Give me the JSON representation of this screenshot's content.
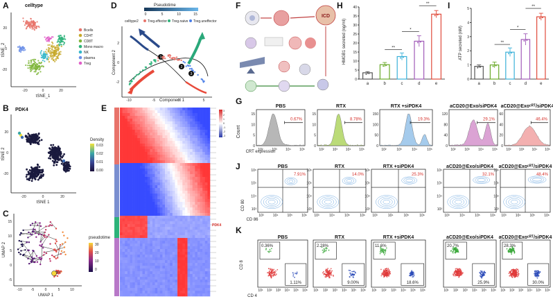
{
  "panel_labels": {
    "A": "A",
    "B": "B",
    "C": "C",
    "D": "D",
    "E": "E",
    "F": "F",
    "G": "G",
    "H": "H",
    "I": "I",
    "J": "J",
    "K": "K"
  },
  "panelA": {
    "title": "celltype",
    "xlabel": "tSNE_1",
    "ylabel": "tSNE_2",
    "xticks": [
      "-20",
      "0",
      "20"
    ],
    "yticks": [
      "20",
      "0",
      "-20"
    ],
    "legend": [
      {
        "label": "Bcells",
        "color": "#e8736a"
      },
      {
        "label": "CD4T",
        "color": "#c7a92a"
      },
      {
        "label": "CD8T",
        "color": "#7fb63b"
      },
      {
        "label": "Mono macro",
        "color": "#2db37a"
      },
      {
        "label": "NK",
        "color": "#33b6c9"
      },
      {
        "label": "plasma",
        "color": "#6a8ee8"
      },
      {
        "label": "Treg",
        "color": "#e05fc8"
      }
    ]
  },
  "panelB": {
    "title": "PDK4",
    "xlabel": "tSNE 1",
    "ylabel": "tSNE 2",
    "xticks": [
      "-20",
      "0",
      "20"
    ],
    "yticks": [
      "20",
      "0",
      "-20"
    ],
    "colorbar_title": "Density",
    "colorbar_ticks": [
      "0.03",
      "0.02",
      "0.01",
      "0.00"
    ]
  },
  "panelC": {
    "xlabel": "UMAP 1",
    "ylabel": "UMAP 2",
    "xticks": [
      "-10",
      "-5",
      "0",
      "5",
      "10"
    ],
    "yticks": [
      "15",
      "10",
      "5",
      "0",
      "-5"
    ],
    "colorbar_title": "pseudotime",
    "colorbar_ticks": [
      "30",
      "20",
      "10",
      "0"
    ]
  },
  "panelD": {
    "colorbar_title": "Pseudotime",
    "colorbar_ticks": [
      "0",
      "5",
      "10",
      "15"
    ],
    "legend_title": "celltype2",
    "legend": [
      {
        "label": "Treg.effector",
        "color": "#e8736a"
      },
      {
        "label": "Treg.naive",
        "color": "#2db37a"
      },
      {
        "label": "Treg.uneffector",
        "color": "#4a7ee8"
      }
    ],
    "xlabel": "Component 1",
    "ylabel": "Component 2",
    "xticks": [
      "-10",
      "-5",
      "0",
      "5"
    ],
    "yticks": [
      "2",
      "0",
      "-2"
    ],
    "branch_points": [
      "1",
      "2",
      "3"
    ]
  },
  "panelE": {
    "colorbar_ticks": [
      "3",
      "2",
      "1",
      "0",
      "-1",
      "-2",
      "-3"
    ],
    "highlight_gene": "PDK4"
  },
  "panelF": {
    "label_icd": "ICD"
  },
  "panelH": {
    "ylabel": "HMGB1 secreted (ng/ml)",
    "yticks": [
      "0",
      "5",
      "10",
      "15",
      "20",
      "25",
      "30",
      "35",
      "40"
    ],
    "ylim": [
      0,
      40
    ],
    "chart_data": {
      "type": "bar",
      "categories": [
        "a",
        "b",
        "c",
        "d",
        "e"
      ],
      "values": [
        3.5,
        8,
        12.5,
        21,
        36
      ],
      "errors": [
        0.6,
        1.2,
        2,
        3,
        2
      ],
      "colors": [
        "#555555",
        "#6aaa2a",
        "#3ab0d8",
        "#a05ab8",
        "#e04a3a"
      ],
      "significance": [
        [
          "b",
          "c",
          "**"
        ],
        [
          "c",
          "d",
          "*"
        ],
        [
          "d",
          "e",
          "**"
        ]
      ]
    }
  },
  "panelI": {
    "ylabel": "ATP secreted (nM)",
    "yticks": [
      "0",
      "1",
      "2",
      "3",
      "4",
      "5"
    ],
    "ylim": [
      0,
      5
    ],
    "chart_data": {
      "type": "bar",
      "categories": [
        "a",
        "b",
        "c",
        "d",
        "e"
      ],
      "values": [
        0.9,
        1.0,
        1.9,
        2.8,
        4.4
      ],
      "errors": [
        0.1,
        0.2,
        0.3,
        0.4,
        0.25
      ],
      "colors": [
        "#555555",
        "#6aaa2a",
        "#3ab0d8",
        "#a05ab8",
        "#e04a3a"
      ],
      "significance": [
        [
          "b",
          "c",
          "**"
        ],
        [
          "c",
          "d",
          "*"
        ],
        [
          "d",
          "e",
          "**"
        ]
      ]
    }
  },
  "panelG": {
    "ylabel": "Count",
    "xlabel": "CRT expression",
    "xticks": [
      "10²",
      "10³",
      "10⁴",
      "10⁵"
    ],
    "plots": [
      {
        "title": "PBS",
        "percent": "0.67%",
        "color": "#b0b0b0",
        "yticks": [
          "0",
          "5",
          "10",
          "15"
        ]
      },
      {
        "title": "RTX",
        "percent": "8.78%",
        "color": "#b4d86a",
        "yticks": [
          "0",
          "5",
          "10",
          "15"
        ]
      },
      {
        "title": "RTX +siPDK4",
        "percent": "19.3%",
        "color": "#9cc6ea",
        "yticks": [
          "0",
          "50",
          "100",
          "150"
        ]
      },
      {
        "title": "aCD20@Exo/siPDK4",
        "percent": "29.1%",
        "color": "#d89ad0",
        "yticks": [
          "0",
          "40",
          "80",
          "120"
        ]
      },
      {
        "title": "aCD20@Exoᶜᴿᵀ/siPDK4",
        "percent": "46.4%",
        "color": "#f2a8a8",
        "yticks": [
          "0",
          "20",
          "40",
          "60"
        ]
      }
    ]
  },
  "panelJ": {
    "ylabel": "CD 80",
    "xlabel": "CD 86",
    "ticks": [
      "10³",
      "10⁴",
      "10⁵",
      "10⁶"
    ],
    "plots": [
      {
        "title": "PBS",
        "percent": "7.91%"
      },
      {
        "title": "RTX",
        "percent": "14.0%"
      },
      {
        "title": "RTX +siPDK4",
        "percent": "25.3%"
      },
      {
        "title": "aCD20@Exo/siPDK4",
        "percent": "32.1%"
      },
      {
        "title": "aCD20@Exoᶜᴿᵀ/siPDK4",
        "percent": "48.4%"
      }
    ]
  },
  "panelK": {
    "ylabel": "CD 8",
    "xlabel": "CD 4",
    "ticks": [
      "10¹",
      "10²",
      "10³",
      "10⁴",
      "10⁵",
      "10⁶"
    ],
    "plots": [
      {
        "title": "PBS",
        "cd8": "0.36%",
        "cd4": "1.11%"
      },
      {
        "title": "RTX",
        "cd8": "2.28%",
        "cd4": "9.00%"
      },
      {
        "title": "RTX +siPDK4",
        "cd8": "11.6%",
        "cd4": "18.6%"
      },
      {
        "title": "aCD20@Exo/siPDK4",
        "cd8": "20.7%",
        "cd4": "25.9%"
      },
      {
        "title": "aCD20@Exoᶜᴿᵀ/siPDK4",
        "cd8": "28.3%",
        "cd4": "30.0%"
      }
    ]
  }
}
